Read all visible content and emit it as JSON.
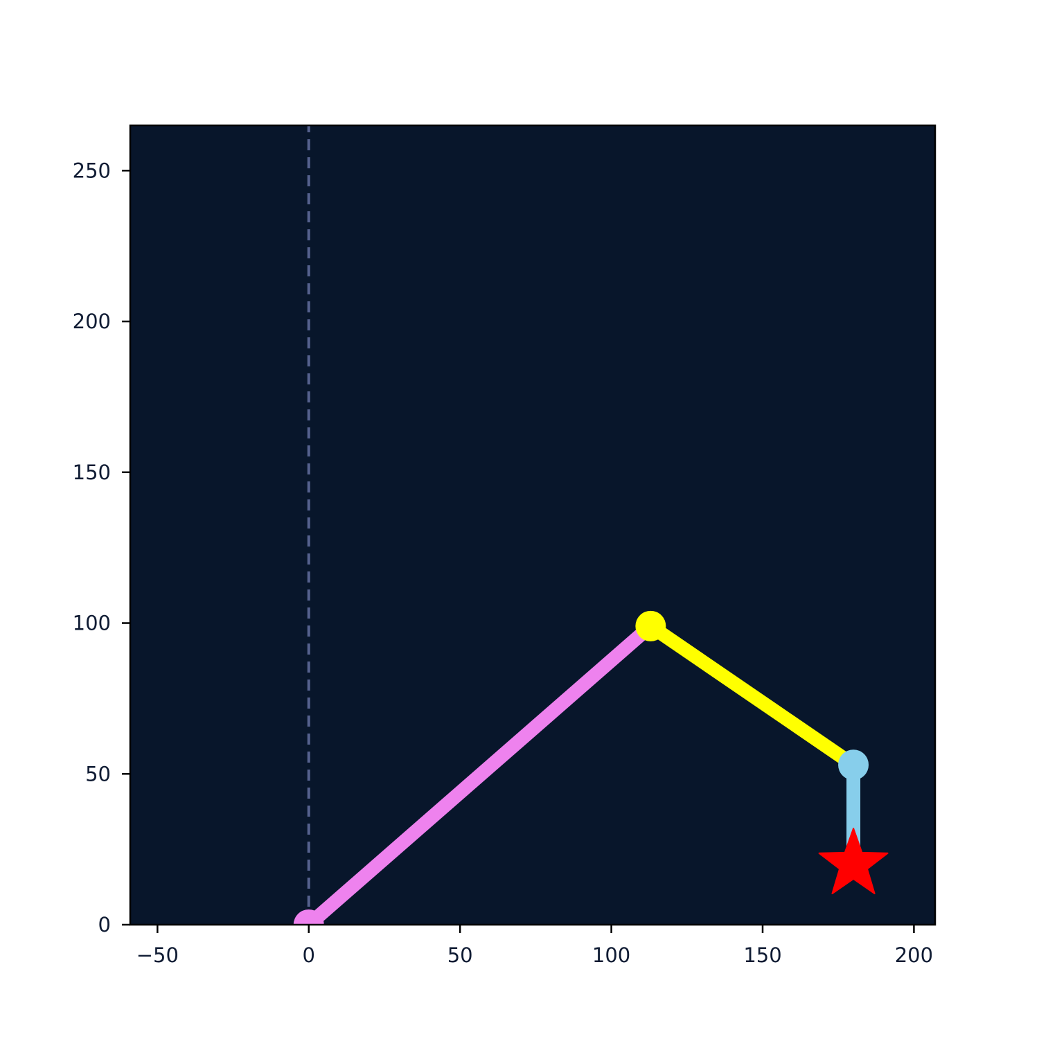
{
  "chart_data": {
    "type": "line",
    "title": "",
    "xlabel": "",
    "ylabel": "",
    "xlim": [
      -59,
      207
    ],
    "ylim": [
      0,
      265
    ],
    "x_ticks": [
      -50,
      0,
      50,
      100,
      150,
      200
    ],
    "x_tick_labels": [
      "−50",
      "0",
      "50",
      "100",
      "150",
      "200"
    ],
    "y_ticks": [
      0,
      50,
      100,
      150,
      200,
      250
    ],
    "y_tick_labels": [
      "0",
      "50",
      "100",
      "150",
      "200",
      "250"
    ],
    "grid": false,
    "legend": "none",
    "background_color": "#08162b",
    "reference_line": {
      "x": 0,
      "y_from": 0,
      "y_to": 265,
      "style": "dashed",
      "color": "#56628f"
    },
    "segments": [
      {
        "from": [
          0,
          0
        ],
        "to": [
          113,
          99
        ],
        "color": "#ee82ee"
      },
      {
        "from": [
          113,
          99
        ],
        "to": [
          180,
          53
        ],
        "color": "#ffff00"
      },
      {
        "from": [
          180,
          53
        ],
        "to": [
          180,
          20
        ],
        "color": "#87ceeb"
      }
    ],
    "joints": [
      {
        "x": 0,
        "y": 0,
        "color": "#ee82ee"
      },
      {
        "x": 113,
        "y": 99,
        "color": "#ffff00"
      },
      {
        "x": 180,
        "y": 53,
        "color": "#87ceeb"
      }
    ],
    "target": {
      "x": 180,
      "y": 20,
      "marker": "star",
      "color": "#ff0000"
    }
  }
}
